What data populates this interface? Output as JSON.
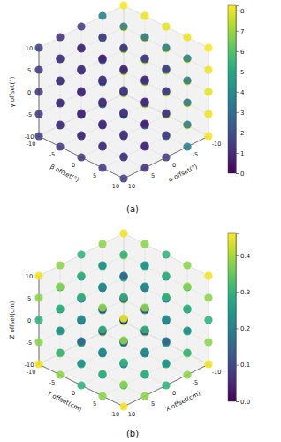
{
  "chart_data": [
    {
      "type": "scatter3d",
      "title": "(a)",
      "x_label": "α offset(°)",
      "y_label": "β offset(°)",
      "z_label": "γ offset(°)",
      "xlim": [
        -10,
        10
      ],
      "ylim": [
        -10,
        10
      ],
      "zlim": [
        -10,
        10
      ],
      "xticks": [
        -10,
        -5,
        0,
        5,
        10
      ],
      "yticks": [
        -10,
        -5,
        0,
        5,
        10
      ],
      "zticks": [
        -10,
        -5,
        0,
        5,
        10
      ],
      "grid": true,
      "x": [
        -10,
        -10,
        -10,
        -10,
        -10,
        -10,
        -10,
        -10,
        -10,
        -10,
        -10,
        -10,
        -10,
        -10,
        -10,
        -10,
        -10,
        -10,
        -10,
        -10,
        -10,
        -10,
        -10,
        -10,
        -10,
        -5,
        -5,
        -5,
        -5,
        -5,
        -5,
        -5,
        -5,
        -5,
        -5,
        -5,
        -5,
        -5,
        -5,
        -5,
        -5,
        -5,
        -5,
        -5,
        -5,
        -5,
        -5,
        -5,
        -5,
        -5,
        0,
        0,
        0,
        0,
        0,
        0,
        0,
        0,
        0,
        0,
        0,
        0,
        0,
        0,
        0,
        0,
        0,
        0,
        0,
        0,
        0,
        0,
        0,
        0,
        0,
        5,
        5,
        5,
        5,
        5,
        5,
        5,
        5,
        5,
        5,
        5,
        5,
        5,
        5,
        5,
        5,
        5,
        5,
        5,
        5,
        5,
        5,
        5,
        5,
        5,
        10,
        10,
        10,
        10,
        10,
        10,
        10,
        10,
        10,
        10,
        10,
        10,
        10,
        10,
        10,
        10,
        10,
        10,
        10,
        10,
        10,
        10,
        10,
        10,
        10
      ],
      "y": [
        -10,
        -10,
        -10,
        -10,
        -10,
        -5,
        -5,
        -5,
        -5,
        -5,
        0,
        0,
        0,
        0,
        0,
        5,
        5,
        5,
        5,
        5,
        10,
        10,
        10,
        10,
        10,
        -10,
        -10,
        -10,
        -10,
        -10,
        -5,
        -5,
        -5,
        -5,
        -5,
        0,
        0,
        0,
        0,
        0,
        5,
        5,
        5,
        5,
        5,
        10,
        10,
        10,
        10,
        10,
        -10,
        -10,
        -10,
        -10,
        -10,
        -5,
        -5,
        -5,
        -5,
        -5,
        0,
        0,
        0,
        0,
        0,
        5,
        5,
        5,
        5,
        5,
        10,
        10,
        10,
        10,
        10,
        -10,
        -10,
        -10,
        -10,
        -10,
        -5,
        -5,
        -5,
        -5,
        -5,
        0,
        0,
        0,
        0,
        0,
        5,
        5,
        5,
        5,
        5,
        10,
        10,
        10,
        10,
        10,
        -10,
        -10,
        -10,
        -10,
        -10,
        -5,
        -5,
        -5,
        -5,
        -5,
        0,
        0,
        0,
        0,
        0,
        5,
        5,
        5,
        5,
        5,
        10,
        10,
        10,
        10,
        10
      ],
      "z": [
        -10,
        -5,
        0,
        5,
        10,
        -10,
        -5,
        0,
        5,
        10,
        -10,
        -5,
        0,
        5,
        10,
        -10,
        -5,
        0,
        5,
        10,
        -10,
        -5,
        0,
        5,
        10,
        -10,
        -5,
        0,
        5,
        10,
        -10,
        -5,
        0,
        5,
        10,
        -10,
        -5,
        0,
        5,
        10,
        -10,
        -5,
        0,
        5,
        10,
        -10,
        -5,
        0,
        5,
        10,
        -10,
        -5,
        0,
        5,
        10,
        -10,
        -5,
        0,
        5,
        10,
        -10,
        -5,
        0,
        5,
        10,
        -10,
        -5,
        0,
        5,
        10,
        -10,
        -5,
        0,
        5,
        10,
        -10,
        -5,
        0,
        5,
        10,
        -10,
        -5,
        0,
        5,
        10,
        -10,
        -5,
        0,
        5,
        10,
        -10,
        -5,
        0,
        5,
        10,
        -10,
        -5,
        0,
        5,
        10,
        -10,
        -5,
        0,
        5,
        10,
        -10,
        -5,
        0,
        5,
        10,
        -10,
        -5,
        0,
        5,
        10,
        -10,
        -5,
        0,
        5,
        10,
        -10,
        -5,
        0,
        5,
        10
      ],
      "values": [
        8.2,
        8.05,
        7.9,
        8.05,
        8.2,
        8.05,
        7.9,
        7.75,
        7.9,
        8.05,
        7.9,
        7.75,
        7.6,
        7.75,
        7.9,
        8.05,
        7.9,
        7.75,
        7.9,
        8.05,
        8.2,
        8.05,
        7.9,
        8.05,
        8.2,
        3.6,
        3.45,
        3.3,
        3.45,
        3.6,
        3.45,
        3.3,
        3.15,
        3.3,
        3.45,
        3.3,
        3.15,
        3.0,
        3.15,
        3.3,
        3.45,
        3.3,
        3.15,
        3.3,
        3.45,
        3.6,
        3.45,
        3.3,
        3.45,
        3.6,
        1.5,
        1.35,
        1.2,
        1.35,
        1.5,
        1.35,
        1.2,
        1.05,
        1.2,
        1.35,
        1.2,
        1.05,
        0.9,
        1.05,
        1.2,
        1.35,
        1.2,
        1.05,
        1.2,
        1.35,
        1.5,
        1.35,
        1.2,
        1.35,
        1.5,
        1.1,
        0.95,
        0.8,
        0.95,
        1.1,
        0.95,
        0.8,
        0.65,
        0.8,
        0.95,
        0.8,
        0.65,
        0.5,
        0.65,
        0.8,
        0.95,
        0.8,
        0.65,
        0.8,
        0.95,
        1.1,
        0.95,
        0.8,
        0.95,
        1.1,
        1.6,
        1.45,
        1.3,
        1.45,
        1.6,
        1.45,
        1.3,
        1.15,
        1.3,
        1.45,
        1.3,
        1.15,
        1.0,
        1.15,
        1.3,
        1.45,
        1.3,
        1.15,
        1.3,
        1.45,
        1.6,
        1.45,
        1.3,
        1.45,
        1.6
      ],
      "colorbar_lim": [
        0,
        8.25
      ],
      "colorbar_ticks": [
        0,
        1,
        2,
        3,
        4,
        5,
        6,
        7,
        8
      ]
    },
    {
      "type": "scatter3d",
      "title": "(b)",
      "x_label": "X offset(cm)",
      "y_label": "Y offset(cm)",
      "z_label": "Z offset(cm)",
      "xlim": [
        -10,
        10
      ],
      "ylim": [
        -10,
        10
      ],
      "zlim": [
        -10,
        10
      ],
      "xticks": [
        -10,
        -5,
        0,
        5,
        10
      ],
      "yticks": [
        -10,
        -5,
        0,
        5,
        10
      ],
      "zticks": [
        -10,
        -5,
        0,
        5,
        10
      ],
      "grid": true,
      "x": [
        -10,
        -10,
        -10,
        -10,
        -10,
        -10,
        -10,
        -10,
        -10,
        -10,
        -10,
        -10,
        -10,
        -10,
        -10,
        -10,
        -10,
        -10,
        -10,
        -10,
        -10,
        -10,
        -10,
        -10,
        -10,
        -5,
        -5,
        -5,
        -5,
        -5,
        -5,
        -5,
        -5,
        -5,
        -5,
        -5,
        -5,
        -5,
        -5,
        -5,
        -5,
        -5,
        -5,
        -5,
        -5,
        -5,
        -5,
        -5,
        -5,
        -5,
        0,
        0,
        0,
        0,
        0,
        0,
        0,
        0,
        0,
        0,
        0,
        0,
        0,
        0,
        0,
        0,
        0,
        0,
        0,
        0,
        0,
        0,
        0,
        0,
        0,
        5,
        5,
        5,
        5,
        5,
        5,
        5,
        5,
        5,
        5,
        5,
        5,
        5,
        5,
        5,
        5,
        5,
        5,
        5,
        5,
        5,
        5,
        5,
        5,
        5,
        10,
        10,
        10,
        10,
        10,
        10,
        10,
        10,
        10,
        10,
        10,
        10,
        10,
        10,
        10,
        10,
        10,
        10,
        10,
        10,
        10,
        10,
        10,
        10,
        10
      ],
      "y": [
        -10,
        -10,
        -10,
        -10,
        -10,
        -5,
        -5,
        -5,
        -5,
        -5,
        0,
        0,
        0,
        0,
        0,
        5,
        5,
        5,
        5,
        5,
        10,
        10,
        10,
        10,
        10,
        -10,
        -10,
        -10,
        -10,
        -10,
        -5,
        -5,
        -5,
        -5,
        -5,
        0,
        0,
        0,
        0,
        0,
        5,
        5,
        5,
        5,
        5,
        10,
        10,
        10,
        10,
        10,
        -10,
        -10,
        -10,
        -10,
        -10,
        -5,
        -5,
        -5,
        -5,
        -5,
        0,
        0,
        0,
        0,
        0,
        5,
        5,
        5,
        5,
        5,
        10,
        10,
        10,
        10,
        10,
        -10,
        -10,
        -10,
        -10,
        -10,
        -5,
        -5,
        -5,
        -5,
        -5,
        0,
        0,
        0,
        0,
        0,
        5,
        5,
        5,
        5,
        5,
        10,
        10,
        10,
        10,
        10,
        -10,
        -10,
        -10,
        -10,
        -10,
        -5,
        -5,
        -5,
        -5,
        -5,
        0,
        0,
        0,
        0,
        0,
        5,
        5,
        5,
        5,
        5,
        10,
        10,
        10,
        10,
        10
      ],
      "z": [
        -10,
        -5,
        0,
        5,
        10,
        -10,
        -5,
        0,
        5,
        10,
        -10,
        -5,
        0,
        5,
        10,
        -10,
        -5,
        0,
        5,
        10,
        -10,
        -5,
        0,
        5,
        10,
        -10,
        -5,
        0,
        5,
        10,
        -10,
        -5,
        0,
        5,
        10,
        -10,
        -5,
        0,
        5,
        10,
        -10,
        -5,
        0,
        5,
        10,
        -10,
        -5,
        0,
        5,
        10,
        -10,
        -5,
        0,
        5,
        10,
        -10,
        -5,
        0,
        5,
        10,
        -10,
        -5,
        0,
        5,
        10,
        -10,
        -5,
        0,
        5,
        10,
        -10,
        -5,
        0,
        5,
        10,
        -10,
        -5,
        0,
        5,
        10,
        -10,
        -5,
        0,
        5,
        10,
        -10,
        -5,
        0,
        5,
        10,
        -10,
        -5,
        0,
        5,
        10,
        -10,
        -5,
        0,
        5,
        10,
        -10,
        -5,
        0,
        5,
        10,
        -10,
        -5,
        0,
        5,
        10,
        -10,
        -5,
        0,
        5,
        10,
        -10,
        -5,
        0,
        5,
        10,
        -10,
        -5,
        0,
        5,
        10
      ],
      "values": [
        0.45,
        0.38,
        0.3,
        0.38,
        0.45,
        0.38,
        0.3,
        0.23,
        0.3,
        0.38,
        0.3,
        0.23,
        0.15,
        0.23,
        0.3,
        0.38,
        0.3,
        0.23,
        0.3,
        0.38,
        0.45,
        0.38,
        0.3,
        0.38,
        0.45,
        0.38,
        0.3,
        0.23,
        0.3,
        0.38,
        0.3,
        0.23,
        0.15,
        0.23,
        0.3,
        0.23,
        0.15,
        0.08,
        0.15,
        0.23,
        0.3,
        0.23,
        0.15,
        0.23,
        0.3,
        0.38,
        0.3,
        0.23,
        0.3,
        0.38,
        0.3,
        0.23,
        0.15,
        0.23,
        0.3,
        0.23,
        0.15,
        0.08,
        0.15,
        0.23,
        0.15,
        0.08,
        0,
        0.08,
        0.15,
        0.23,
        0.15,
        0.08,
        0.15,
        0.23,
        0.3,
        0.23,
        0.15,
        0.23,
        0.3,
        0.38,
        0.3,
        0.23,
        0.3,
        0.38,
        0.3,
        0.23,
        0.15,
        0.23,
        0.3,
        0.23,
        0.15,
        0.08,
        0.15,
        0.23,
        0.3,
        0.23,
        0.15,
        0.23,
        0.3,
        0.38,
        0.3,
        0.23,
        0.3,
        0.38,
        0.45,
        0.38,
        0.3,
        0.38,
        0.45,
        0.38,
        0.3,
        0.23,
        0.3,
        0.38,
        0.3,
        0.23,
        0.15,
        0.23,
        0.3,
        0.38,
        0.3,
        0.23,
        0.3,
        0.38,
        0.45,
        0.38,
        0.3,
        0.38,
        0.45
      ],
      "colorbar_lim": [
        0,
        0.46
      ],
      "colorbar_ticks": [
        {
          "value": 0,
          "label": "0.0"
        },
        0.1,
        0.2,
        0.3,
        0.4
      ]
    }
  ]
}
